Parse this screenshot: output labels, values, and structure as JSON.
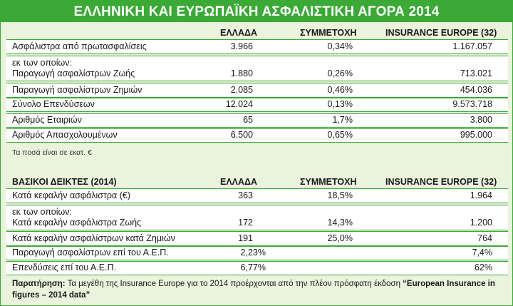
{
  "title": "ΕΛΛΗΝΙΚΗ ΚΑΙ ΕΥΡΩΠΑΪΚΗ ΑΣΦΑΛΙΣΤΙΚΗ ΑΓΟΡΑ 2014",
  "table1": {
    "headers": {
      "greece": "ΕΛΛΑΔΑ",
      "share": "ΣΥΜΜΕΤΟΧΗ",
      "europe": "INSURANCE EUROPE (32)"
    },
    "rows": [
      {
        "label": "Ασφάλιστρα από πρωτασφαλίσεις",
        "greece": "3.966",
        "share": "0,34%",
        "europe": "1.167.057"
      },
      {
        "label_top": "εκ των οποίων:",
        "label": "Παραγωγή ασφαλίστρων Ζωής",
        "greece": "1.880",
        "share": "0,26%",
        "europe": "713.021"
      },
      {
        "label": "Παραγωγή ασφαλίστρων Ζημιών",
        "greece": "2.085",
        "share": "0,46%",
        "europe": "454.036"
      },
      {
        "label": "Σύνολο Επενδύσεων",
        "greece": "12.024",
        "share": "0,13%",
        "europe": "9.573.718"
      },
      {
        "label": "Αριθμός Εταιριών",
        "greece": "65",
        "share": "1,7%",
        "europe": "3.800"
      },
      {
        "label": "Αριθμός Απασχολουμένων",
        "greece": "6.500",
        "share": "0,65%",
        "europe": "995.000"
      }
    ],
    "note": "Τα ποσά είναι σε εκατ. €"
  },
  "table2": {
    "headers": {
      "label": "ΒΑΣΙΚΟΙ ΔΕΙΚΤΕΣ (2014)",
      "greece": "ΕΛΛΑΔΑ",
      "share": "ΣΥΜΜΕΤΟΧΗ",
      "europe": "INSURANCE EUROPE (32)"
    },
    "rows": [
      {
        "label": "Κατά κεφαλήν ασφάλιστρα (€)",
        "greece": "363",
        "share": "18,5%",
        "europe": "1.964"
      },
      {
        "label_top": "εκ των οποίων:",
        "label": "Κατά κεφαλήν ασφάλιστρα Ζωής",
        "greece": "172",
        "share": "14,3%",
        "europe": "1.200"
      },
      {
        "label": "Κατά κεφαλήν ασφαλίστρων κατά Ζημιών",
        "greece": "191",
        "share": "25,0%",
        "europe": "764"
      },
      {
        "label": "Παραγωγή ασφαλίστρων επί του Α.Ε.Π.",
        "greece": "2,23%",
        "share": "",
        "europe": "7,4%"
      },
      {
        "label": "Επενδύσεις επί του Α.Ε.Π.",
        "greece": "6,77%",
        "share": "",
        "europe": "62%"
      }
    ]
  },
  "footnote": {
    "bold": "Παρατήρηση:",
    "text": " Τα μεγέθη της Insurance Europe για το 2014 προέρχονται από την πλέον πρόσφατη έκδοση ",
    "quote": "“European Insurance in figures – 2014 data”"
  }
}
